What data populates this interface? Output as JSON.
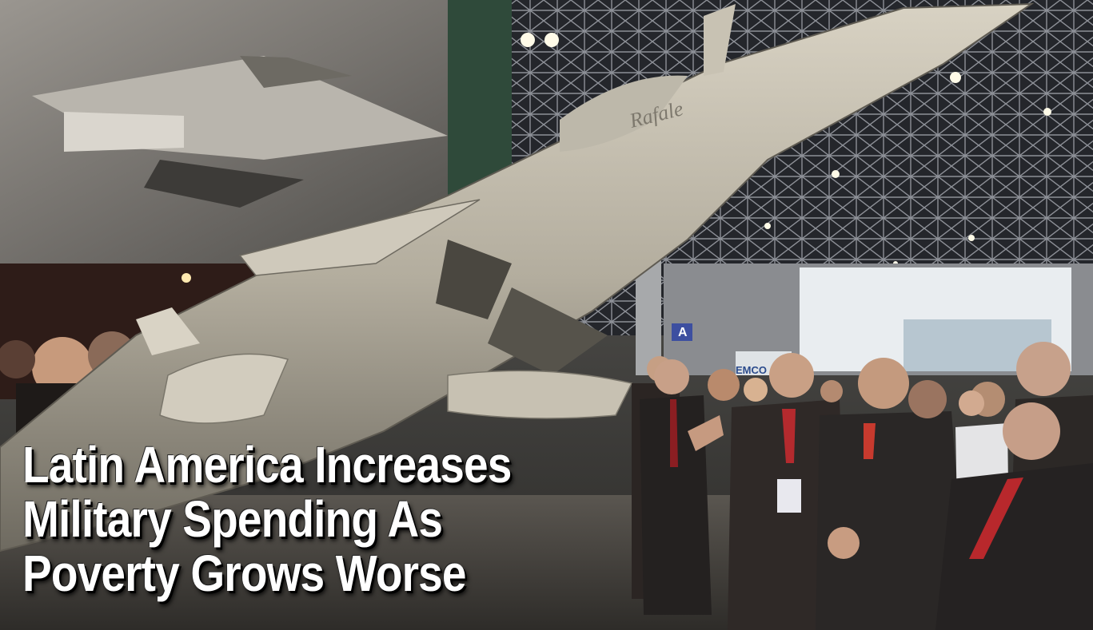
{
  "headline": {
    "lines": [
      "Latin America Increases",
      "Military Spending As",
      "Poverty Grows Worse"
    ]
  },
  "scene": {
    "jet_name": "Rafale",
    "booth_sign": "EMCO",
    "aisle_letter": "A"
  },
  "colors": {
    "headline_text": "#ffffff",
    "headline_shadow": "#000000",
    "jet_body": "#b9b3a4",
    "ceiling": "#2a2c30",
    "suits": "#2a2624"
  }
}
